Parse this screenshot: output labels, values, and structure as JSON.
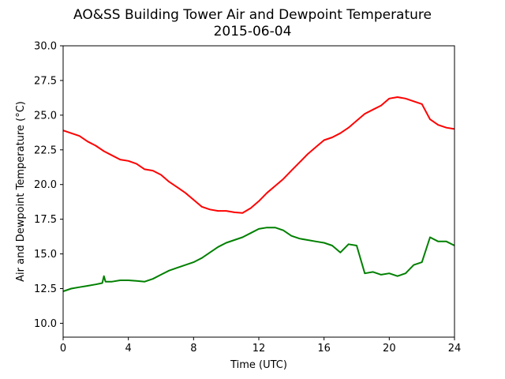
{
  "chart_data": {
    "type": "line",
    "title": "AO&SS Building Tower Air and Dewpoint Temperature",
    "subtitle": "2015-06-04",
    "xlabel": "Time (UTC)",
    "ylabel": "Air and Dewpoint Temperature (°C)",
    "xlim": [
      0,
      24
    ],
    "ylim": [
      9.0,
      30.0
    ],
    "xticks": [
      0,
      4,
      8,
      12,
      16,
      20,
      24
    ],
    "yticks": [
      10.0,
      12.5,
      15.0,
      17.5,
      20.0,
      22.5,
      25.0,
      27.5,
      30.0
    ],
    "xtick_labels": [
      "0",
      "4",
      "8",
      "12",
      "16",
      "20",
      "24"
    ],
    "ytick_labels": [
      "10.0",
      "12.5",
      "15.0",
      "17.5",
      "20.0",
      "22.5",
      "25.0",
      "27.5",
      "30.0"
    ],
    "grid": false,
    "series": [
      {
        "color": "#ff0000",
        "x": [
          0,
          0.5,
          1,
          1.5,
          2,
          2.5,
          3,
          3.5,
          4,
          4.5,
          5,
          5.5,
          6,
          6.5,
          7,
          7.5,
          8,
          8.5,
          9,
          9.5,
          10,
          10.5,
          11,
          11.5,
          12,
          12.5,
          13,
          13.5,
          14,
          14.5,
          15,
          15.5,
          16,
          16.5,
          17,
          17.5,
          18,
          18.5,
          19,
          19.5,
          20,
          20.5,
          21,
          21.5,
          22,
          22.5,
          23,
          23.5,
          24
        ],
        "y": [
          23.9,
          23.7,
          23.5,
          23.1,
          22.8,
          22.4,
          22.1,
          21.8,
          21.7,
          21.5,
          21.1,
          21.0,
          20.7,
          20.2,
          19.8,
          19.4,
          18.9,
          18.4,
          18.2,
          18.1,
          18.1,
          18.0,
          17.95,
          18.3,
          18.8,
          19.4,
          19.9,
          20.4,
          21.0,
          21.6,
          22.2,
          22.7,
          23.2,
          23.4,
          23.7,
          24.1,
          24.6,
          25.1,
          25.4,
          25.7,
          26.2,
          26.3,
          26.2,
          26.0,
          25.8,
          24.7,
          24.3,
          24.1,
          24.0
        ]
      },
      {
        "color": "#008000",
        "x": [
          0,
          0.5,
          1,
          1.5,
          2,
          2.4,
          2.5,
          2.6,
          3,
          3.5,
          4,
          4.5,
          5,
          5.5,
          6,
          6.5,
          7,
          7.5,
          8,
          8.5,
          9,
          9.5,
          10,
          10.5,
          11,
          11.5,
          12,
          12.5,
          13,
          13.5,
          14,
          14.5,
          15,
          15.5,
          16,
          16.5,
          17,
          17.5,
          18,
          18.5,
          19,
          19.5,
          20,
          20.5,
          21,
          21.5,
          22,
          22.5,
          23,
          23.5,
          24
        ],
        "y": [
          12.3,
          12.5,
          12.6,
          12.7,
          12.8,
          12.9,
          13.4,
          13.0,
          13.0,
          13.1,
          13.1,
          13.05,
          13.0,
          13.2,
          13.5,
          13.8,
          14.0,
          14.2,
          14.4,
          14.7,
          15.1,
          15.5,
          15.8,
          16.0,
          16.2,
          16.5,
          16.8,
          16.9,
          16.9,
          16.7,
          16.3,
          16.1,
          16.0,
          15.9,
          15.8,
          15.6,
          15.1,
          15.7,
          15.6,
          13.6,
          13.7,
          13.5,
          13.6,
          13.4,
          13.6,
          14.2,
          14.4,
          16.2,
          15.9,
          15.9,
          15.6
        ]
      }
    ]
  }
}
